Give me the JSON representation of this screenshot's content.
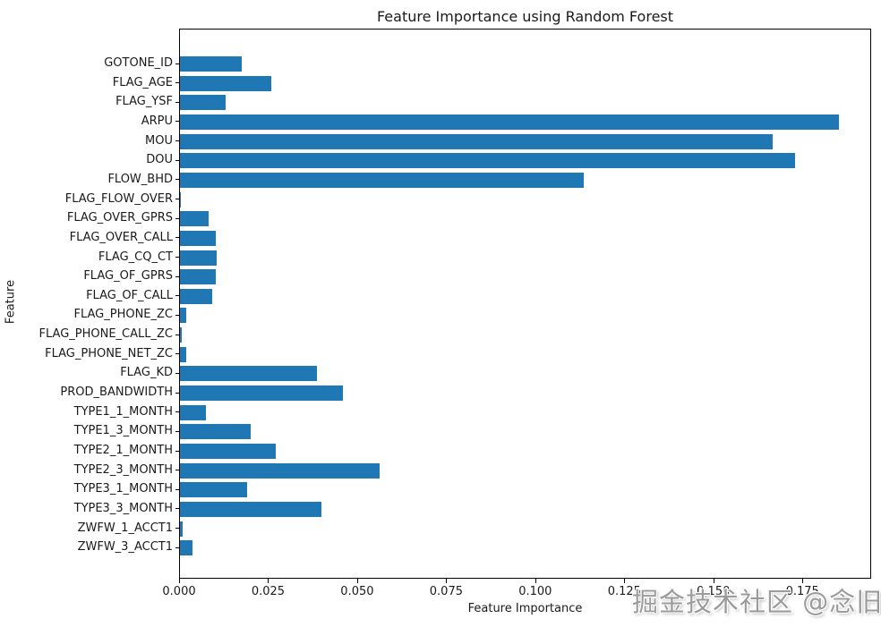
{
  "watermark": {
    "text": "掘金技术社区 @念旧_"
  },
  "chart_data": {
    "type": "bar",
    "orientation": "horizontal",
    "title": "Feature Importance using Random Forest",
    "xlabel": "Feature Importance",
    "ylabel": "Feature",
    "bar_color": "#1f77b4",
    "xlim": [
      0,
      0.1943
    ],
    "xticks": [
      0.0,
      0.025,
      0.05,
      0.075,
      0.1,
      0.125,
      0.15,
      0.175
    ],
    "grid": false,
    "legend": "none",
    "categories": [
      "GOTONE_ID",
      "FLAG_AGE",
      "FLAG_YSF",
      "ARPU",
      "MOU",
      "DOU",
      "FLOW_BHD",
      "FLAG_FLOW_OVER",
      "FLAG_OVER_GPRS",
      "FLAG_OVER_CALL",
      "FLAG_CQ_CT",
      "FLAG_OF_GPRS",
      "FLAG_OF_CALL",
      "FLAG_PHONE_ZC",
      "FLAG_PHONE_CALL_ZC",
      "FLAG_PHONE_NET_ZC",
      "FLAG_KD",
      "PROD_BANDWIDTH",
      "TYPE1_1_MONTH",
      "TYPE1_3_MONTH",
      "TYPE2_1_MONTH",
      "TYPE2_3_MONTH",
      "TYPE3_1_MONTH",
      "TYPE3_3_MONTH",
      "ZWFW_1_ACCT1",
      "ZWFW_3_ACCT1"
    ],
    "values": [
      0.0173,
      0.0256,
      0.0128,
      0.185,
      0.1663,
      0.1728,
      0.1134,
      0.0003,
      0.0081,
      0.0101,
      0.0104,
      0.0101,
      0.0091,
      0.0017,
      0.0004,
      0.0017,
      0.0384,
      0.0457,
      0.0073,
      0.0198,
      0.0269,
      0.056,
      0.0188,
      0.0397,
      0.0007,
      0.0035
    ]
  }
}
